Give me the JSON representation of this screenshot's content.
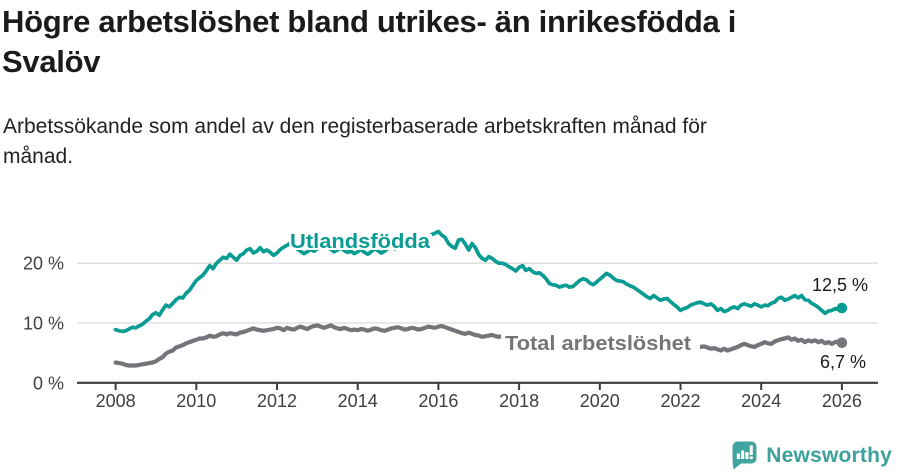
{
  "header": {
    "title": "Högre arbetslöshet bland utrikes- än inrikesfödda i Svalöv",
    "subtitle": "Arbetssökande som andel av den registerbaserade arbetskraften månad för månad."
  },
  "footer": {
    "brand": "Newsworthy"
  },
  "colors": {
    "foreign_born": "#089c93",
    "total": "#73757a",
    "brand_teal": "#42a49e",
    "axis": "#3c3c3c",
    "gridline": "#dcdcdc",
    "value_label": "#1a1a1a"
  },
  "chart_data": {
    "type": "line",
    "title": "Högre arbetslöshet bland utrikes- än inrikesfödda i Svalöv",
    "subtitle": "Arbetssökande som andel av den registerbaserade arbetskraften månad för månad.",
    "x_unit": "month",
    "x_start": "2008-01",
    "x_end": "2026-01",
    "xlim_years": [
      2007.05,
      2026.9
    ],
    "ylim": [
      0,
      27
    ],
    "grid": "horizontal",
    "x_tick_labels": [
      "2008",
      "2010",
      "2012",
      "2014",
      "2016",
      "2018",
      "2020",
      "2022",
      "2024",
      "2026"
    ],
    "y_ticks": [
      0,
      10,
      20
    ],
    "y_tick_labels": [
      "0 %",
      "10 %",
      "20 %"
    ],
    "series": [
      {
        "name": "Utlandsfödda",
        "color": "#089c93",
        "end_value": 12.5,
        "end_label": "12,5 %",
        "values": [
          8.9,
          8.7,
          8.6,
          8.7,
          9.0,
          9.3,
          9.2,
          9.5,
          9.8,
          10.3,
          10.7,
          11.4,
          11.7,
          11.3,
          12.2,
          13.0,
          12.7,
          13.3,
          13.9,
          14.3,
          14.2,
          15.0,
          15.5,
          16.3,
          17.1,
          17.6,
          18.0,
          18.8,
          19.6,
          19.1,
          20.0,
          20.5,
          21.0,
          20.8,
          21.5,
          21.0,
          20.5,
          21.3,
          21.6,
          22.2,
          22.4,
          21.7,
          22.0,
          22.6,
          21.9,
          22.2,
          21.8,
          21.3,
          21.7,
          22.3,
          22.7,
          23.0,
          23.4,
          22.8,
          22.4,
          22.0,
          21.6,
          21.9,
          22.3,
          22.0,
          22.4,
          22.9,
          23.2,
          22.7,
          22.3,
          21.9,
          22.2,
          22.6,
          22.1,
          21.8,
          22.0,
          21.6,
          21.9,
          22.3,
          21.8,
          21.5,
          21.9,
          22.4,
          22.1,
          21.7,
          22.0,
          22.5,
          22.8,
          22.4,
          22.7,
          23.1,
          22.8,
          23.3,
          23.6,
          23.2,
          23.7,
          24.1,
          23.8,
          24.3,
          24.8,
          25.0,
          25.3,
          24.7,
          24.3,
          23.3,
          22.8,
          22.5,
          23.9,
          24.0,
          23.2,
          22.2,
          23.3,
          22.6,
          21.4,
          20.8,
          20.5,
          21.1,
          20.8,
          20.3,
          20.0,
          20.0,
          19.8,
          19.4,
          19.1,
          18.7,
          19.3,
          19.6,
          18.8,
          19.1,
          18.6,
          18.3,
          18.4,
          18.0,
          17.4,
          16.6,
          16.4,
          16.3,
          16.0,
          16.2,
          16.3,
          16.0,
          16.1,
          16.6,
          17.1,
          17.4,
          17.2,
          16.7,
          16.4,
          16.8,
          17.3,
          17.8,
          18.3,
          18.0,
          17.5,
          17.1,
          17.0,
          16.9,
          16.5,
          16.2,
          16.0,
          15.6,
          15.2,
          14.8,
          14.4,
          14.1,
          14.6,
          14.2,
          13.8,
          14.0,
          14.1,
          13.6,
          13.1,
          12.7,
          12.1,
          12.4,
          12.6,
          13.0,
          13.2,
          13.4,
          13.5,
          13.2,
          13.0,
          13.2,
          12.8,
          12.1,
          12.4,
          11.9,
          12.1,
          12.5,
          12.7,
          12.4,
          13.0,
          13.2,
          13.0,
          12.8,
          13.2,
          13.0,
          12.7,
          13.0,
          12.9,
          13.3,
          13.5,
          14.1,
          14.3,
          13.8,
          14.0,
          14.3,
          14.6,
          14.2,
          14.6,
          13.9,
          13.8,
          13.3,
          13.0,
          12.6,
          12.1,
          11.6,
          12.0,
          12.1,
          12.4,
          12.3,
          12.5
        ]
      },
      {
        "name": "Total arbetslöshet",
        "color": "#73757a",
        "end_value": 6.7,
        "end_label": "6,7 %",
        "values": [
          3.4,
          3.3,
          3.2,
          3.0,
          2.9,
          2.9,
          2.9,
          3.0,
          3.1,
          3.2,
          3.3,
          3.4,
          3.6,
          4.0,
          4.3,
          4.9,
          5.2,
          5.4,
          5.9,
          6.1,
          6.3,
          6.6,
          6.8,
          7.0,
          7.2,
          7.4,
          7.4,
          7.6,
          7.9,
          7.7,
          7.8,
          8.1,
          8.3,
          8.1,
          8.3,
          8.2,
          8.1,
          8.4,
          8.5,
          8.7,
          8.9,
          9.1,
          8.9,
          8.8,
          8.7,
          8.8,
          8.9,
          9.0,
          9.2,
          9.1,
          8.8,
          9.2,
          9.0,
          8.9,
          9.2,
          9.4,
          9.2,
          9.0,
          9.3,
          9.5,
          9.6,
          9.4,
          9.2,
          9.4,
          9.6,
          9.3,
          9.1,
          9.0,
          9.2,
          9.0,
          8.8,
          8.9,
          8.8,
          9.0,
          8.9,
          8.7,
          8.9,
          9.1,
          9.0,
          8.8,
          8.7,
          8.9,
          9.1,
          9.2,
          9.3,
          9.1,
          8.9,
          9.0,
          9.2,
          9.1,
          8.9,
          9.0,
          9.2,
          9.4,
          9.3,
          9.2,
          9.4,
          9.5,
          9.3,
          9.1,
          8.9,
          8.7,
          8.5,
          8.3,
          8.2,
          8.4,
          8.2,
          8.0,
          7.9,
          7.7,
          7.8,
          7.9,
          8.0,
          7.8,
          7.7,
          7.8,
          7.6,
          7.5,
          7.4,
          7.3,
          7.4,
          7.2,
          7.1,
          7.0,
          6.9,
          7.0,
          7.1,
          6.9,
          6.8,
          6.7,
          6.6,
          6.7,
          6.8,
          6.9,
          6.8,
          6.9,
          7.0,
          7.2,
          7.3,
          7.2,
          7.1,
          7.0,
          7.1,
          7.3,
          7.5,
          7.8,
          8.2,
          8.5,
          8.4,
          8.3,
          8.2,
          8.0,
          7.8,
          7.6,
          7.4,
          7.2,
          7.1,
          7.0,
          6.8,
          6.7,
          6.6,
          6.5,
          6.4,
          6.3,
          6.2,
          6.1,
          6.0,
          5.9,
          6.0,
          6.1,
          6.0,
          6.1,
          6.2,
          6.1,
          6.0,
          6.1,
          5.9,
          5.7,
          5.8,
          5.6,
          5.4,
          5.7,
          5.4,
          5.6,
          5.8,
          6.0,
          6.3,
          6.5,
          6.3,
          6.1,
          6.0,
          6.3,
          6.5,
          6.8,
          6.6,
          6.5,
          6.9,
          7.1,
          7.3,
          7.4,
          7.6,
          7.2,
          7.4,
          7.0,
          7.2,
          6.8,
          7.1,
          6.9,
          7.1,
          6.8,
          7.0,
          6.6,
          6.8,
          6.5,
          6.8,
          6.9,
          6.7
        ]
      }
    ]
  }
}
